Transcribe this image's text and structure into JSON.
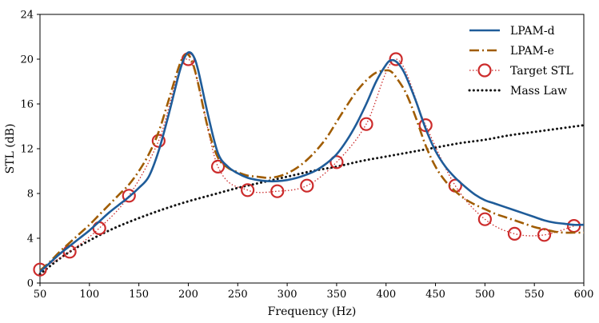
{
  "chart_data": {
    "type": "line",
    "title": "",
    "xlabel": "Frequency (Hz)",
    "ylabel": "STL (dB)",
    "xlim": [
      50,
      600
    ],
    "ylim": [
      0,
      24
    ],
    "x_ticks": [
      50,
      100,
      150,
      200,
      250,
      300,
      350,
      400,
      450,
      500,
      550,
      600
    ],
    "y_ticks": [
      0,
      4,
      8,
      12,
      16,
      20,
      24
    ],
    "grid": false,
    "legend_position": "top-right",
    "series": [
      {
        "name": "LPAM-d",
        "style": "solid",
        "color": "#1f5c99",
        "x": [
          50,
          60,
          70,
          80,
          90,
          100,
          110,
          120,
          130,
          140,
          150,
          160,
          170,
          180,
          190,
          195,
          200,
          205,
          210,
          220,
          230,
          240,
          250,
          260,
          270,
          280,
          290,
          300,
          310,
          320,
          330,
          340,
          350,
          360,
          370,
          380,
          390,
          400,
          405,
          410,
          415,
          420,
          430,
          440,
          450,
          460,
          470,
          480,
          490,
          500,
          510,
          520,
          530,
          540,
          550,
          560,
          570,
          580,
          590,
          600
        ],
        "y": [
          1.0,
          1.8,
          2.6,
          3.3,
          4.0,
          4.7,
          5.5,
          6.3,
          7.0,
          7.7,
          8.5,
          9.5,
          11.8,
          15.0,
          18.5,
          19.9,
          20.6,
          20.3,
          19.0,
          15.0,
          11.6,
          10.4,
          9.8,
          9.4,
          9.2,
          9.1,
          9.1,
          9.2,
          9.4,
          9.7,
          10.1,
          10.7,
          11.5,
          12.7,
          14.2,
          16.0,
          18.0,
          19.5,
          19.9,
          19.8,
          19.3,
          18.5,
          16.3,
          13.8,
          11.8,
          10.4,
          9.4,
          8.6,
          7.9,
          7.4,
          7.1,
          6.8,
          6.5,
          6.2,
          5.9,
          5.6,
          5.4,
          5.3,
          5.2,
          5.2
        ]
      },
      {
        "name": "LPAM-e",
        "style": "dashdot",
        "color": "#a05c00",
        "x": [
          50,
          60,
          70,
          80,
          90,
          100,
          110,
          120,
          130,
          140,
          150,
          160,
          170,
          180,
          190,
          195,
          200,
          205,
          210,
          220,
          230,
          240,
          250,
          260,
          270,
          280,
          290,
          300,
          310,
          320,
          330,
          340,
          350,
          360,
          370,
          380,
          390,
          400,
          405,
          410,
          420,
          430,
          440,
          450,
          460,
          470,
          480,
          490,
          500,
          510,
          520,
          530,
          540,
          550,
          560,
          570,
          580,
          590,
          600
        ],
        "y": [
          1.1,
          1.9,
          2.8,
          3.6,
          4.4,
          5.2,
          6.1,
          7.0,
          7.9,
          8.8,
          10.0,
          11.5,
          13.5,
          16.3,
          19.2,
          20.2,
          20.4,
          19.5,
          17.8,
          13.8,
          11.2,
          10.3,
          9.9,
          9.6,
          9.5,
          9.4,
          9.5,
          9.8,
          10.3,
          11.0,
          11.9,
          13.0,
          14.4,
          15.8,
          17.1,
          18.1,
          18.8,
          19.0,
          18.9,
          18.4,
          17.0,
          14.8,
          12.3,
          10.4,
          9.1,
          8.2,
          7.5,
          7.0,
          6.6,
          6.2,
          5.9,
          5.6,
          5.3,
          5.0,
          4.8,
          4.6,
          4.5,
          4.5,
          4.5
        ]
      },
      {
        "name": "Target STL",
        "style": "dotted-markers",
        "color": "#cc2b2b",
        "x": [
          50,
          80,
          110,
          140,
          170,
          200,
          230,
          260,
          290,
          320,
          350,
          380,
          410,
          440,
          470,
          500,
          530,
          560,
          590
        ],
        "y": [
          1.2,
          2.8,
          4.9,
          7.8,
          12.7,
          20.0,
          10.4,
          8.3,
          8.2,
          8.7,
          10.8,
          14.2,
          20.0,
          14.1,
          8.7,
          5.7,
          4.4,
          4.3,
          5.1
        ]
      },
      {
        "name": "Mass Law",
        "style": "dotted",
        "color": "#111111",
        "x": [
          50,
          75,
          100,
          125,
          150,
          175,
          200,
          225,
          250,
          275,
          300,
          325,
          350,
          375,
          400,
          425,
          450,
          475,
          500,
          525,
          550,
          575,
          600
        ],
        "y": [
          0.8,
          2.5,
          3.8,
          4.9,
          5.8,
          6.6,
          7.3,
          7.9,
          8.5,
          9.0,
          9.5,
          10.0,
          10.4,
          10.9,
          11.3,
          11.7,
          12.1,
          12.5,
          12.8,
          13.2,
          13.5,
          13.8,
          14.1
        ]
      }
    ]
  }
}
